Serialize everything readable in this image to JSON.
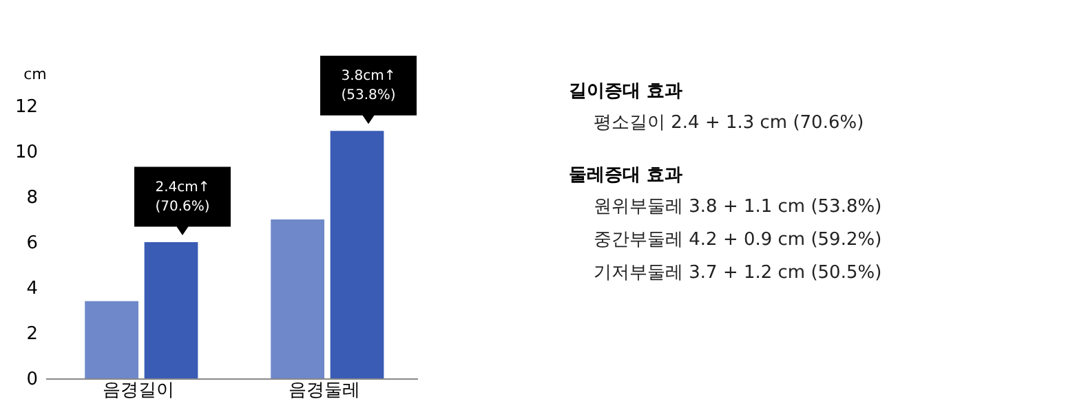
{
  "chart_data": [
    {
      "type": "bar",
      "ylabel": "cm",
      "categories": [
        "음경길이",
        "음경둘레"
      ],
      "series": [
        {
          "color": "#6f88c9",
          "values": [
            3.4,
            7.0
          ]
        },
        {
          "color": "#3a5cb5",
          "values": [
            6.0,
            10.9
          ]
        }
      ],
      "ylim": [
        0,
        12
      ],
      "yticks": [
        0,
        2,
        4,
        6,
        8,
        10,
        12
      ],
      "grid": false,
      "annotations": [
        {
          "text": "2.4cm↑\n(70.6%)",
          "x": "음경길이",
          "y": 6.0
        },
        {
          "text": "3.8cm↑\n(53.8%)",
          "x": "음경둘레",
          "y": 10.9
        }
      ]
    },
    {
      "type": "other",
      "title": "길이증대 효과",
      "annotations": [
        "평소길이 2.4 + 1.3 cm (70.6%)"
      ]
    },
    {
      "type": "other",
      "title": "둘레증대 효과",
      "annotations": [
        "원위부둘레 3.8 + 1.1 cm (53.8%)",
        "중간부둘레 4.2 + 0.9 cm (59.2%)",
        "기저부둘레 3.7 + 1.2 cm (50.5%)"
      ]
    }
  ]
}
